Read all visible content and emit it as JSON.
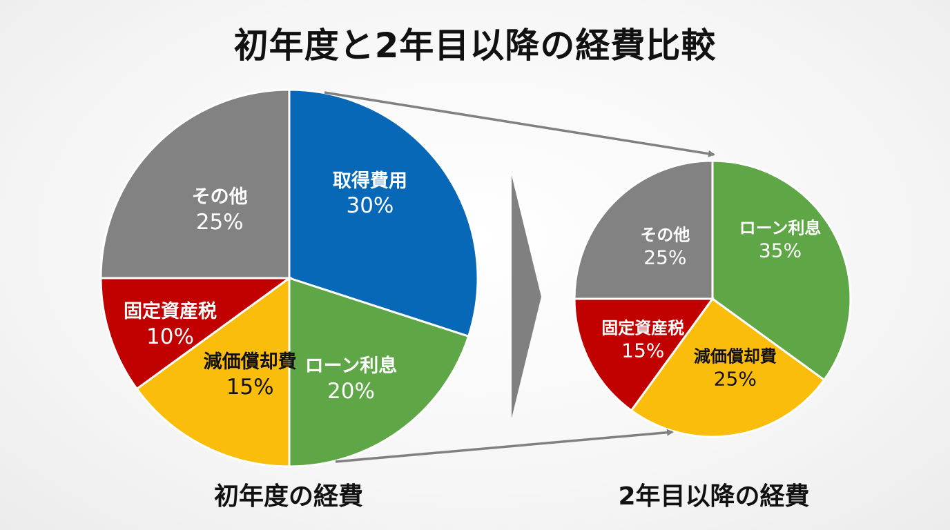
{
  "title": "初年度と2年目以降の経費比較",
  "colors": {
    "blue": "#0868b8",
    "green": "#5ea646",
    "yellow": "#fbbd0b",
    "red": "#c10000",
    "gray": "#828282",
    "arrow": "#808080",
    "background": "#f5f5f5"
  },
  "left_pie": {
    "caption": "初年度の経費",
    "segments": [
      {
        "name": "取得費用",
        "pct": "30%",
        "value": 30,
        "color": "#0868b8",
        "text_color": "#ffffff"
      },
      {
        "name": "ローン利息",
        "pct": "20%",
        "value": 20,
        "color": "#5ea646",
        "text_color": "#ffffff"
      },
      {
        "name": "減価償却費",
        "pct": "15%",
        "value": 15,
        "color": "#fbbd0b",
        "text_color": "#111111"
      },
      {
        "name": "固定資産税",
        "pct": "10%",
        "value": 10,
        "color": "#c10000",
        "text_color": "#ffffff"
      },
      {
        "name": "その他",
        "pct": "25%",
        "value": 25,
        "color": "#828282",
        "text_color": "#ffffff"
      }
    ]
  },
  "right_pie": {
    "caption": "2年目以降の経費",
    "segments": [
      {
        "name": "ローン利息",
        "pct": "35%",
        "value": 35,
        "color": "#5ea646",
        "text_color": "#ffffff"
      },
      {
        "name": "減価償却費",
        "pct": "25%",
        "value": 25,
        "color": "#fbbd0b",
        "text_color": "#111111"
      },
      {
        "name": "固定資産税",
        "pct": "15%",
        "value": 15,
        "color": "#c10000",
        "text_color": "#ffffff"
      },
      {
        "name": "その他",
        "pct": "25%",
        "value": 25,
        "color": "#828282",
        "text_color": "#ffffff"
      }
    ]
  },
  "chart_data": [
    {
      "type": "pie",
      "title": "初年度の経費",
      "categories": [
        "取得費用",
        "ローン利息",
        "減価償却費",
        "固定資産税",
        "その他"
      ],
      "values": [
        30,
        20,
        15,
        10,
        25
      ],
      "unit": "%",
      "colors": [
        "#0868b8",
        "#5ea646",
        "#fbbd0b",
        "#c10000",
        "#828282"
      ],
      "start_angle": "12 o'clock, clockwise"
    },
    {
      "type": "pie",
      "title": "2年目以降の経費",
      "categories": [
        "ローン利息",
        "減価償却費",
        "固定資産税",
        "その他"
      ],
      "values": [
        35,
        25,
        15,
        25
      ],
      "unit": "%",
      "colors": [
        "#5ea646",
        "#fbbd0b",
        "#c10000",
        "#828282"
      ],
      "start_angle": "12 o'clock, clockwise"
    }
  ]
}
